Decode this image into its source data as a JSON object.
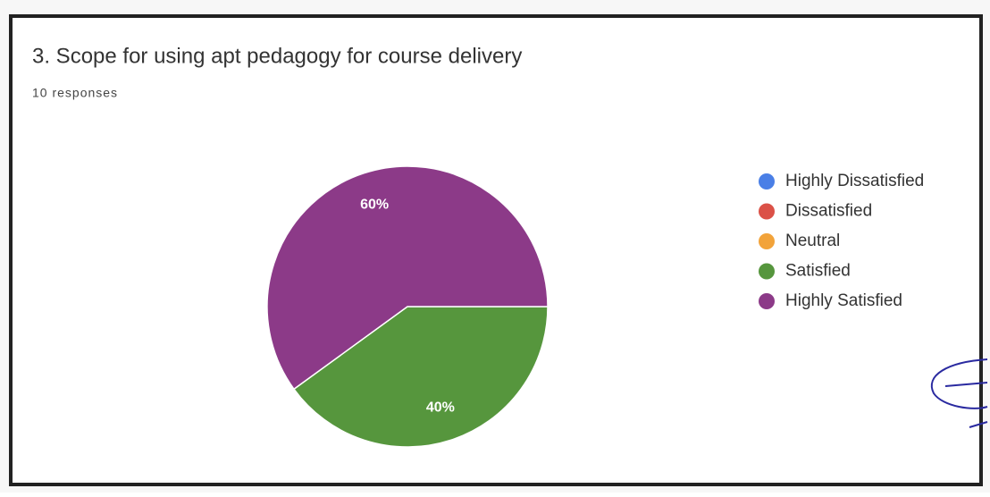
{
  "chart_data": {
    "type": "pie",
    "title": "3. Scope for using apt pedagogy for course delivery",
    "subtitle": "10 responses",
    "categories": [
      "Highly Dissatisfied",
      "Dissatisfied",
      "Neutral",
      "Satisfied",
      "Highly Satisfied"
    ],
    "values": [
      0,
      0,
      0,
      40,
      60
    ],
    "value_labels": [
      null,
      null,
      null,
      "40%",
      "60%"
    ],
    "colors": [
      "#4a7fe6",
      "#db5147",
      "#f2a33a",
      "#56963d",
      "#8c3a88"
    ],
    "legend": "right"
  }
}
